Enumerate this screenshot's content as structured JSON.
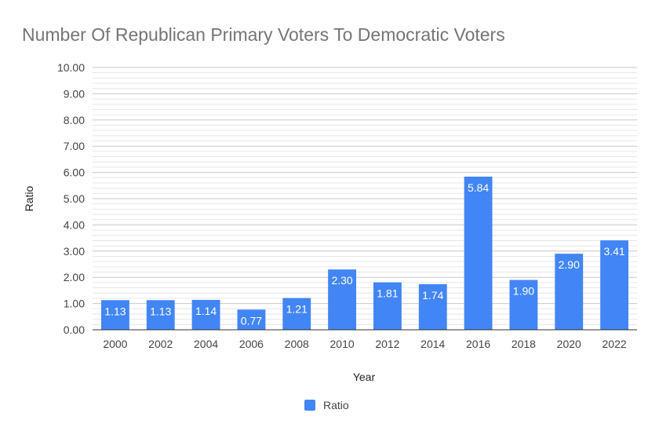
{
  "chart_data": {
    "type": "bar",
    "title": "Number Of Republican Primary Voters To Democratic Voters",
    "xlabel": "Year",
    "ylabel": "Ratio",
    "ylim": [
      0,
      10
    ],
    "yticks": [
      "0.00",
      "1.00",
      "2.00",
      "3.00",
      "4.00",
      "5.00",
      "6.00",
      "7.00",
      "8.00",
      "9.00",
      "10.00"
    ],
    "categories": [
      "2000",
      "2002",
      "2004",
      "2006",
      "2008",
      "2010",
      "2012",
      "2014",
      "2016",
      "2018",
      "2020",
      "2022"
    ],
    "series": [
      {
        "name": "Ratio",
        "color": "#4285f4",
        "values": [
          1.13,
          1.13,
          1.14,
          0.77,
          1.21,
          2.3,
          1.81,
          1.74,
          5.84,
          1.9,
          2.9,
          3.41
        ],
        "labels": [
          "1.13",
          "1.13",
          "1.14",
          "0.77",
          "1.21",
          "2.30",
          "1.81",
          "1.74",
          "5.84",
          "1.90",
          "2.90",
          "3.41"
        ]
      }
    ],
    "legend": "bottom",
    "grid": true
  }
}
